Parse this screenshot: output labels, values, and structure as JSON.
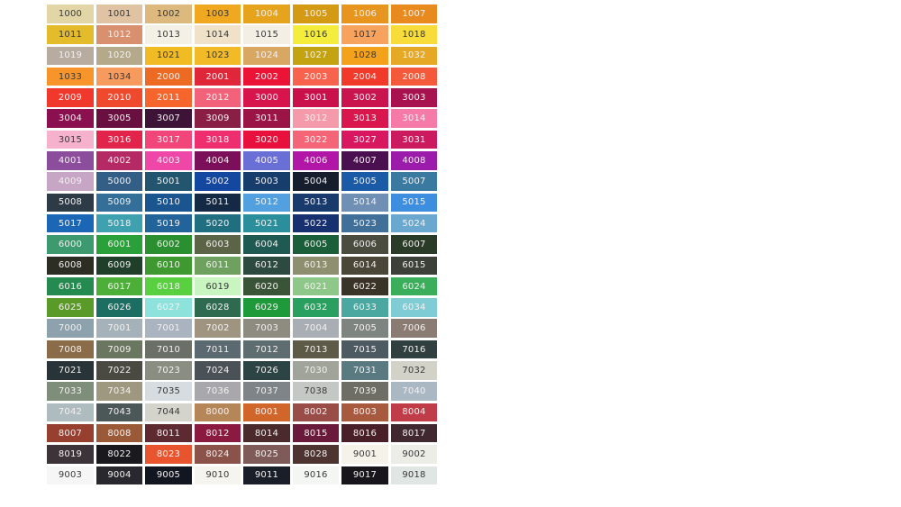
{
  "colors": {
    "light_text": "#f4f0f0",
    "dark_text": "#3a3a3a"
  },
  "rows": [
    [
      [
        "1000",
        "#e2d6a6",
        "#3a3a3a"
      ],
      [
        "1001",
        "#dfc3a3",
        "#3a3a3a"
      ],
      [
        "1002",
        "#ddb97e",
        "#3a3a3a"
      ],
      [
        "1003",
        "#f0a821",
        "#3a3a3a"
      ],
      [
        "1004",
        "#e6a41c",
        "#f4f0f0"
      ],
      [
        "1005",
        "#d49a14",
        "#f4f0f0"
      ],
      [
        "1006",
        "#e89520",
        "#f4f0f0"
      ],
      [
        "1007",
        "#e88a1d",
        "#f4f0f0"
      ]
    ],
    [
      [
        "1011",
        "#e3bb2b",
        "#3a3a3a"
      ],
      [
        "1012",
        "#d8906e",
        "#f4f0f0"
      ],
      [
        "1013",
        "#f3f0e6",
        "#3a3a3a"
      ],
      [
        "1014",
        "#efe2c9",
        "#3a3a3a"
      ],
      [
        "1015",
        "#f4efe4",
        "#3a3a3a"
      ],
      [
        "1016",
        "#f5ed3c",
        "#3a3a3a"
      ],
      [
        "1017",
        "#f7a35d",
        "#3a3a3a"
      ],
      [
        "1018",
        "#f7dc3a",
        "#3a3a3a"
      ]
    ],
    [
      [
        "1019",
        "#b8aba0",
        "#f4f0f0"
      ],
      [
        "1020",
        "#b4a98a",
        "#f4f0f0"
      ],
      [
        "1021",
        "#f1bb23",
        "#3a3a3a"
      ],
      [
        "1023",
        "#f2ba27",
        "#3a3a3a"
      ],
      [
        "1024",
        "#d8a862",
        "#f4f0f0"
      ],
      [
        "1027",
        "#c4a311",
        "#f4f0f0"
      ],
      [
        "1028",
        "#f4a21c",
        "#3a3a3a"
      ],
      [
        "1032",
        "#e6a925",
        "#f4f0f0"
      ]
    ],
    [
      [
        "1033",
        "#f7952a",
        "#3a3a3a"
      ],
      [
        "1034",
        "#f79a5e",
        "#3a3a3a"
      ],
      [
        "2000",
        "#ed6a22",
        "#f4f0f0"
      ],
      [
        "2001",
        "#e0273a",
        "#f4f0f0"
      ],
      [
        "2002",
        "#eb1437",
        "#f4f0f0"
      ],
      [
        "2003",
        "#f8634e",
        "#f4f0f0"
      ],
      [
        "2004",
        "#f23a2a",
        "#f4f0f0"
      ],
      [
        "2008",
        "#f45a3a",
        "#f4f0f0"
      ]
    ],
    [
      [
        "2009",
        "#f0382d",
        "#f4f0f0"
      ],
      [
        "2010",
        "#f04a2e",
        "#f4f0f0"
      ],
      [
        "2011",
        "#f6652c",
        "#f4f0f0"
      ],
      [
        "2012",
        "#f2627a",
        "#f4f0f0"
      ],
      [
        "3000",
        "#d8144d",
        "#f4f0f0"
      ],
      [
        "3001",
        "#c9104a",
        "#f4f0f0"
      ],
      [
        "3002",
        "#c91450",
        "#f4f0f0"
      ],
      [
        "3003",
        "#a8124e",
        "#f4f0f0"
      ]
    ],
    [
      [
        "3004",
        "#8a1050",
        "#f4f0f0"
      ],
      [
        "3005",
        "#6a1040",
        "#f4f0f0"
      ],
      [
        "3007",
        "#3e1338",
        "#f4f0f0"
      ],
      [
        "3009",
        "#8a1f45",
        "#f4f0f0"
      ],
      [
        "3011",
        "#9a1545",
        "#f4f0f0"
      ],
      [
        "3012",
        "#f59aaa",
        "#f4f0f0"
      ],
      [
        "3013",
        "#d9174e",
        "#f4f0f0"
      ],
      [
        "3014",
        "#f57aa8",
        "#f4f0f0"
      ]
    ],
    [
      [
        "3015",
        "#f6b2cd",
        "#3a3a3a"
      ],
      [
        "3016",
        "#e2244a",
        "#f4f0f0"
      ],
      [
        "3017",
        "#f2457a",
        "#f4f0f0"
      ],
      [
        "3018",
        "#ef2e70",
        "#f4f0f0"
      ],
      [
        "3020",
        "#e8113d",
        "#f4f0f0"
      ],
      [
        "3022",
        "#f46677",
        "#f4f0f0"
      ],
      [
        "3027",
        "#d91660",
        "#f4f0f0"
      ],
      [
        "3031",
        "#cc1a5e",
        "#f4f0f0"
      ]
    ],
    [
      [
        "4001",
        "#8c4e9c",
        "#f4f0f0"
      ],
      [
        "4002",
        "#b52a64",
        "#f4f0f0"
      ],
      [
        "4003",
        "#ef47a8",
        "#f4f0f0"
      ],
      [
        "4004",
        "#7b0f5a",
        "#f4f0f0"
      ],
      [
        "4005",
        "#6a6fd5",
        "#f4f0f0"
      ],
      [
        "4006",
        "#b116a6",
        "#f4f0f0"
      ],
      [
        "4007",
        "#4a1050",
        "#f4f0f0"
      ],
      [
        "4008",
        "#9b1bab",
        "#f4f0f0"
      ]
    ],
    [
      [
        "4009",
        "#c7a5c4",
        "#f4f0f0"
      ],
      [
        "5000",
        "#335f87",
        "#f4f0f0"
      ],
      [
        "5001",
        "#23566e",
        "#f4f0f0"
      ],
      [
        "5002",
        "#1447a0",
        "#f4f0f0"
      ],
      [
        "5003",
        "#163d6b",
        "#f4f0f0"
      ],
      [
        "5004",
        "#161e2e",
        "#f4f0f0"
      ],
      [
        "5005",
        "#1a5aa6",
        "#f4f0f0"
      ],
      [
        "5007",
        "#3b7aa0",
        "#f4f0f0"
      ]
    ],
    [
      [
        "5008",
        "#2c3b46",
        "#f4f0f0"
      ],
      [
        "5009",
        "#336f98",
        "#f4f0f0"
      ],
      [
        "5010",
        "#1a5590",
        "#f4f0f0"
      ],
      [
        "5011",
        "#142944",
        "#f4f0f0"
      ],
      [
        "5012",
        "#52a0e0",
        "#f4f0f0"
      ],
      [
        "5013",
        "#193a6c",
        "#f4f0f0"
      ],
      [
        "5014",
        "#6f8fb5",
        "#f4f0f0"
      ],
      [
        "5015",
        "#3e8ee0",
        "#f4f0f0"
      ]
    ],
    [
      [
        "5017",
        "#1b67b5",
        "#f4f0f0"
      ],
      [
        "5018",
        "#3fa0b0",
        "#f4f0f0"
      ],
      [
        "5019",
        "#22649a",
        "#f4f0f0"
      ],
      [
        "5020",
        "#1f6f80",
        "#f4f0f0"
      ],
      [
        "5021",
        "#2a8f9a",
        "#f4f0f0"
      ],
      [
        "5022",
        "#163070",
        "#f4f0f0"
      ],
      [
        "5023",
        "#40709a",
        "#f4f0f0"
      ],
      [
        "5024",
        "#6aa8d0",
        "#f4f0f0"
      ]
    ],
    [
      [
        "6000",
        "#3c9a6e",
        "#f4f0f0"
      ],
      [
        "6001",
        "#2aa03a",
        "#f4f0f0"
      ],
      [
        "6002",
        "#2a8f2e",
        "#f4f0f0"
      ],
      [
        "6003",
        "#5b6446",
        "#f4f0f0"
      ],
      [
        "6004",
        "#1f5a52",
        "#f4f0f0"
      ],
      [
        "6005",
        "#1a5e3a",
        "#f4f0f0"
      ],
      [
        "6006",
        "#4a4c40",
        "#f4f0f0"
      ],
      [
        "6007",
        "#2a3c28",
        "#f4f0f0"
      ]
    ],
    [
      [
        "6008",
        "#2c2e24",
        "#f4f0f0"
      ],
      [
        "6009",
        "#1f3f2a",
        "#f4f0f0"
      ],
      [
        "6010",
        "#3e9a30",
        "#f4f0f0"
      ],
      [
        "6011",
        "#6ea060",
        "#f4f0f0"
      ],
      [
        "6012",
        "#2c4a40",
        "#f4f0f0"
      ],
      [
        "6013",
        "#8e8f6e",
        "#f4f0f0"
      ],
      [
        "6014",
        "#4a4738",
        "#f4f0f0"
      ],
      [
        "6015",
        "#3b4038",
        "#f4f0f0"
      ]
    ],
    [
      [
        "6016",
        "#258a50",
        "#f4f0f0"
      ],
      [
        "6017",
        "#4cb038",
        "#f4f0f0"
      ],
      [
        "6018",
        "#58d040",
        "#f4f0f0"
      ],
      [
        "6019",
        "#c8f5c0",
        "#3a3a3a"
      ],
      [
        "6020",
        "#3a5438",
        "#f4f0f0"
      ],
      [
        "6021",
        "#8ec888",
        "#f4f0f0"
      ],
      [
        "6022",
        "#3a3428",
        "#f4f0f0"
      ],
      [
        "6024",
        "#3aae5a",
        "#f4f0f0"
      ]
    ],
    [
      [
        "6025",
        "#5a9a28",
        "#f4f0f0"
      ],
      [
        "6026",
        "#1d6e62",
        "#f4f0f0"
      ],
      [
        "6027",
        "#8ee2dc",
        "#f4f0f0"
      ],
      [
        "6028",
        "#2e6a50",
        "#f4f0f0"
      ],
      [
        "6029",
        "#1e9a3a",
        "#f4f0f0"
      ],
      [
        "6032",
        "#2aa060",
        "#f4f0f0"
      ],
      [
        "6033",
        "#4aa8a0",
        "#f4f0f0"
      ],
      [
        "6034",
        "#80ccd4",
        "#f4f0f0"
      ]
    ],
    [
      [
        "7000",
        "#8ea2ae",
        "#f4f0f0"
      ],
      [
        "7001",
        "#a6b2ba",
        "#f4f0f0"
      ],
      [
        "7001",
        "#aab4c0",
        "#f4f0f0"
      ],
      [
        "7002",
        "#9e9480",
        "#f4f0f0"
      ],
      [
        "7003",
        "#8e8c80",
        "#f4f0f0"
      ],
      [
        "7004",
        "#a8aeb4",
        "#f4f0f0"
      ],
      [
        "7005",
        "#7e8480",
        "#f4f0f0"
      ],
      [
        "7006",
        "#8a7c72",
        "#f4f0f0"
      ]
    ],
    [
      [
        "7008",
        "#8a6c48",
        "#f4f0f0"
      ],
      [
        "7009",
        "#6a7660",
        "#f4f0f0"
      ],
      [
        "7010",
        "#6a7068",
        "#f4f0f0"
      ],
      [
        "7011",
        "#5a6a70",
        "#f4f0f0"
      ],
      [
        "7012",
        "#5e6e70",
        "#f4f0f0"
      ],
      [
        "7013",
        "#5e5a48",
        "#f4f0f0"
      ],
      [
        "7015",
        "#4e5a62",
        "#f4f0f0"
      ],
      [
        "7016",
        "#304040",
        "#f4f0f0"
      ]
    ],
    [
      [
        "7021",
        "#283438",
        "#f4f0f0"
      ],
      [
        "7022",
        "#4a4a42",
        "#f4f0f0"
      ],
      [
        "7023",
        "#8a8e82",
        "#f4f0f0"
      ],
      [
        "7024",
        "#4a5258",
        "#f4f0f0"
      ],
      [
        "7026",
        "#2c4444",
        "#f4f0f0"
      ],
      [
        "7030",
        "#a0a49a",
        "#f4f0f0"
      ],
      [
        "7031",
        "#5a7a82",
        "#f4f0f0"
      ],
      [
        "7032",
        "#d2d2c8",
        "#3a3a3a"
      ]
    ],
    [
      [
        "7033",
        "#7e8e7a",
        "#f4f0f0"
      ],
      [
        "7034",
        "#9e9880",
        "#f4f0f0"
      ],
      [
        "7035",
        "#d6dce0",
        "#3a3a3a"
      ],
      [
        "7036",
        "#a8a8ac",
        "#f4f0f0"
      ],
      [
        "7037",
        "#7e8488",
        "#f4f0f0"
      ],
      [
        "7038",
        "#c4c8c4",
        "#3a3a3a"
      ],
      [
        "7039",
        "#6e6e64",
        "#f4f0f0"
      ],
      [
        "7040",
        "#aab8c4",
        "#f4f0f0"
      ]
    ],
    [
      [
        "7042",
        "#aebcc0",
        "#f4f0f0"
      ],
      [
        "7043",
        "#4c5858",
        "#f4f0f0"
      ],
      [
        "7044",
        "#d4d4cc",
        "#3a3a3a"
      ],
      [
        "8000",
        "#b48658",
        "#f4f0f0"
      ],
      [
        "8001",
        "#d0662a",
        "#f4f0f0"
      ],
      [
        "8002",
        "#9a4c48",
        "#f4f0f0"
      ],
      [
        "8003",
        "#a85a3e",
        "#f4f0f0"
      ],
      [
        "8004",
        "#c03c48",
        "#f4f0f0"
      ]
    ],
    [
      [
        "8007",
        "#984030",
        "#f4f0f0"
      ],
      [
        "8008",
        "#9a5a38",
        "#f4f0f0"
      ],
      [
        "8011",
        "#5c2a30",
        "#f4f0f0"
      ],
      [
        "8012",
        "#8a1a40",
        "#f4f0f0"
      ],
      [
        "8014",
        "#4a2a2a",
        "#f4f0f0"
      ],
      [
        "8015",
        "#6a1a3a",
        "#f4f0f0"
      ],
      [
        "8016",
        "#4a2028",
        "#f4f0f0"
      ],
      [
        "8017",
        "#402830",
        "#f4f0f0"
      ]
    ],
    [
      [
        "8019",
        "#3c3438",
        "#f4f0f0"
      ],
      [
        "8022",
        "#1a1a1e",
        "#f4f0f0"
      ],
      [
        "8023",
        "#e8542e",
        "#f4f0f0"
      ],
      [
        "8024",
        "#8a5248",
        "#f4f0f0"
      ],
      [
        "8025",
        "#7e5a58",
        "#f4f0f0"
      ],
      [
        "8028",
        "#4e3430",
        "#f4f0f0"
      ],
      [
        "9001",
        "#f5f2ea",
        "#3a3a3a"
      ],
      [
        "9002",
        "#ebede6",
        "#3a3a3a"
      ]
    ],
    [
      [
        "9003",
        "#f5f6f5",
        "#3a3a3a"
      ],
      [
        "9004",
        "#28282e",
        "#f4f0f0"
      ],
      [
        "9005",
        "#121620",
        "#f4f0f0"
      ],
      [
        "9010",
        "#f5f4ee",
        "#3a3a3a"
      ],
      [
        "9011",
        "#1a1e28",
        "#f4f0f0"
      ],
      [
        "9016",
        "#f4f6f4",
        "#3a3a3a"
      ],
      [
        "9017",
        "#18161c",
        "#f4f0f0"
      ],
      [
        "9018",
        "#e0e6e4",
        "#3a3a3a"
      ]
    ]
  ]
}
